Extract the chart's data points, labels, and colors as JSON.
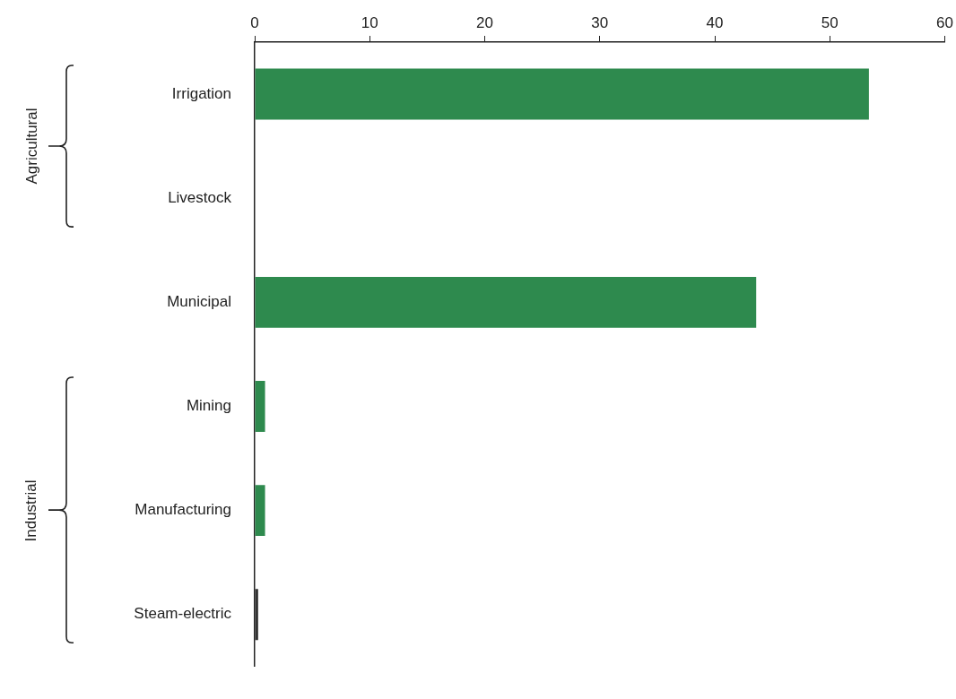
{
  "chart_data": {
    "type": "bar",
    "orientation": "horizontal",
    "categories": [
      "Irrigation",
      "Livestock",
      "Municipal",
      "Mining",
      "Manufacturing",
      "Steam-electric"
    ],
    "values": [
      53.4,
      0,
      43.6,
      0.9,
      0.9,
      0.3
    ],
    "colors": [
      "#2e8a4e",
      "#2e8a4e",
      "#2e8a4e",
      "#2e8a4e",
      "#2e8a4e",
      "#333333"
    ],
    "xlim": [
      0,
      60
    ],
    "xticks": [
      0,
      10,
      20,
      30,
      40,
      50,
      60
    ],
    "annotations": [
      "Agricultural",
      "Industrial"
    ],
    "grid": false,
    "legend": false
  }
}
